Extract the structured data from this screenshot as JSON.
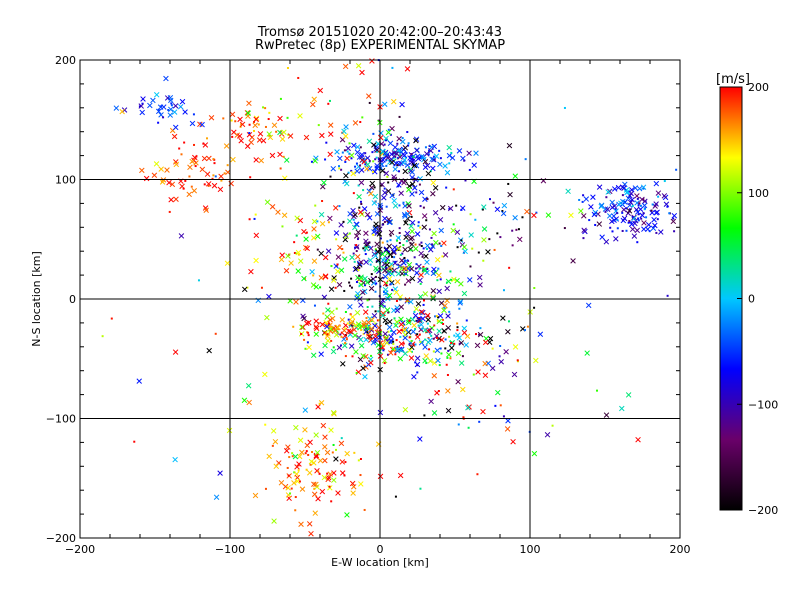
{
  "chart_data": {
    "type": "scatter",
    "title": "Tromsø 20151020 20:42:00–20:43:43",
    "subtitle": "RwPretec (8p) EXPERIMENTAL SKYMAP",
    "xlabel": "E-W location [km]",
    "ylabel": "N-S location [km]",
    "xlim": [
      -200,
      200
    ],
    "ylim": [
      -200,
      200
    ],
    "xticks": [
      "−200",
      "−100",
      "0",
      "100",
      "200"
    ],
    "yticks": [
      "−200",
      "−100",
      "0",
      "100",
      "200"
    ],
    "grid": true,
    "markers": [
      "x",
      "dot"
    ],
    "colorbar": {
      "label": "[m/s]",
      "range": [
        -200,
        200
      ],
      "ticks": [
        "200",
        "100",
        "0",
        "−100",
        "−200"
      ],
      "colormap": [
        "#000000",
        "#6a006a",
        "#0000ff",
        "#00c8ff",
        "#00ff00",
        "#ffff00",
        "#ff0000"
      ]
    },
    "clusters": [
      {
        "x": 15,
        "y": 120,
        "sx": 22,
        "sy": 8,
        "n": 170,
        "v": -60,
        "vs": 45
      },
      {
        "x": 5,
        "y": 70,
        "sx": 18,
        "sy": 35,
        "n": 190,
        "v": -120,
        "vs": 80
      },
      {
        "x": 5,
        "y": 30,
        "sx": 20,
        "sy": 18,
        "n": 230,
        "v": -40,
        "vs": 120
      },
      {
        "x": 10,
        "y": -30,
        "sx": 25,
        "sy": 15,
        "n": 320,
        "v": 40,
        "vs": 150
      },
      {
        "x": -30,
        "y": -25,
        "sx": 12,
        "sy": 6,
        "n": 60,
        "v": 170,
        "vs": 40
      },
      {
        "x": -40,
        "y": -140,
        "sx": 18,
        "sy": 22,
        "n": 110,
        "v": 170,
        "vs": 40
      },
      {
        "x": 170,
        "y": 75,
        "sx": 15,
        "sy": 12,
        "n": 150,
        "v": -70,
        "vs": 35
      },
      {
        "x": -125,
        "y": 105,
        "sx": 15,
        "sy": 12,
        "n": 60,
        "v": 190,
        "vs": 25
      },
      {
        "x": -85,
        "y": 145,
        "sx": 15,
        "sy": 10,
        "n": 45,
        "v": 185,
        "vs": 30
      },
      {
        "x": -140,
        "y": 160,
        "sx": 12,
        "sy": 7,
        "n": 35,
        "v": -55,
        "vs": 25
      },
      {
        "x": -30,
        "y": 140,
        "sx": 25,
        "sy": 25,
        "n": 60,
        "v": 150,
        "vs": 80
      },
      {
        "x": -50,
        "y": 40,
        "sx": 20,
        "sy": 20,
        "n": 60,
        "v": 150,
        "vs": 60
      },
      {
        "x": 60,
        "y": 60,
        "sx": 25,
        "sy": 30,
        "n": 70,
        "v": -100,
        "vs": 120
      },
      {
        "x": 60,
        "y": -70,
        "sx": 25,
        "sy": 35,
        "n": 50,
        "v": 60,
        "vs": 140
      },
      {
        "x": 0,
        "y": 0,
        "sx": 110,
        "sy": 110,
        "n": 140,
        "v": 40,
        "vs": 150
      }
    ]
  }
}
